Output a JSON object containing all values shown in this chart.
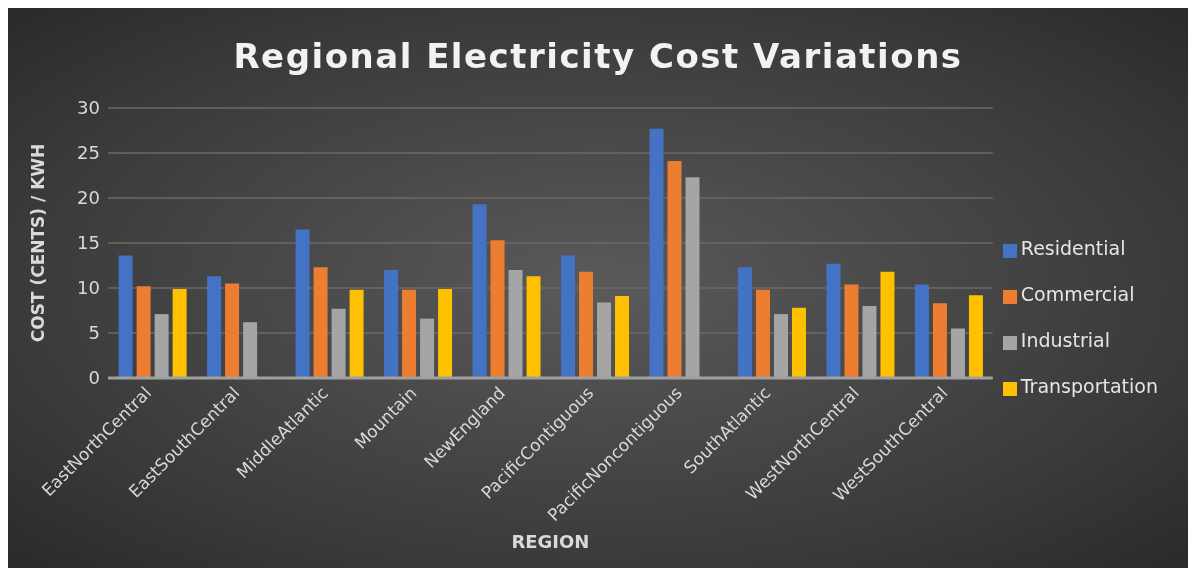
{
  "chart_data": {
    "type": "bar",
    "title": "Regional Electricity Cost Variations",
    "xlabel": "REGION",
    "ylabel": "COST (CENTS) / KWH",
    "categories": [
      "EastNorthCentral",
      "EastSouthCentral",
      "MiddleAtlantic",
      "Mountain",
      "NewEngland",
      "PacificContiguous",
      "PacificNoncontiguous",
      "SouthAtlantic",
      "WestNorthCentral",
      "WestSouthCentral"
    ],
    "series": [
      {
        "name": "Residential",
        "color": "#4472c4",
        "values": [
          13.6,
          11.3,
          16.5,
          12.0,
          19.3,
          13.6,
          27.7,
          12.3,
          12.7,
          10.4
        ]
      },
      {
        "name": "Commercial",
        "color": "#ed7d31",
        "values": [
          10.2,
          10.5,
          12.3,
          9.8,
          15.3,
          11.8,
          24.1,
          9.8,
          10.4,
          8.3
        ]
      },
      {
        "name": "Industrial",
        "color": "#a5a5a5",
        "values": [
          7.1,
          6.2,
          7.7,
          6.6,
          12.0,
          8.4,
          22.3,
          7.1,
          8.0,
          5.5
        ]
      },
      {
        "name": "Transportation",
        "color": "#ffc000",
        "values": [
          9.9,
          null,
          9.8,
          9.9,
          11.3,
          9.1,
          null,
          7.8,
          11.8,
          9.2
        ]
      }
    ],
    "ylim": [
      0,
      30
    ],
    "yticks": [
      0,
      5,
      10,
      15,
      20,
      25,
      30
    ],
    "grid": "y",
    "legend": "right"
  }
}
